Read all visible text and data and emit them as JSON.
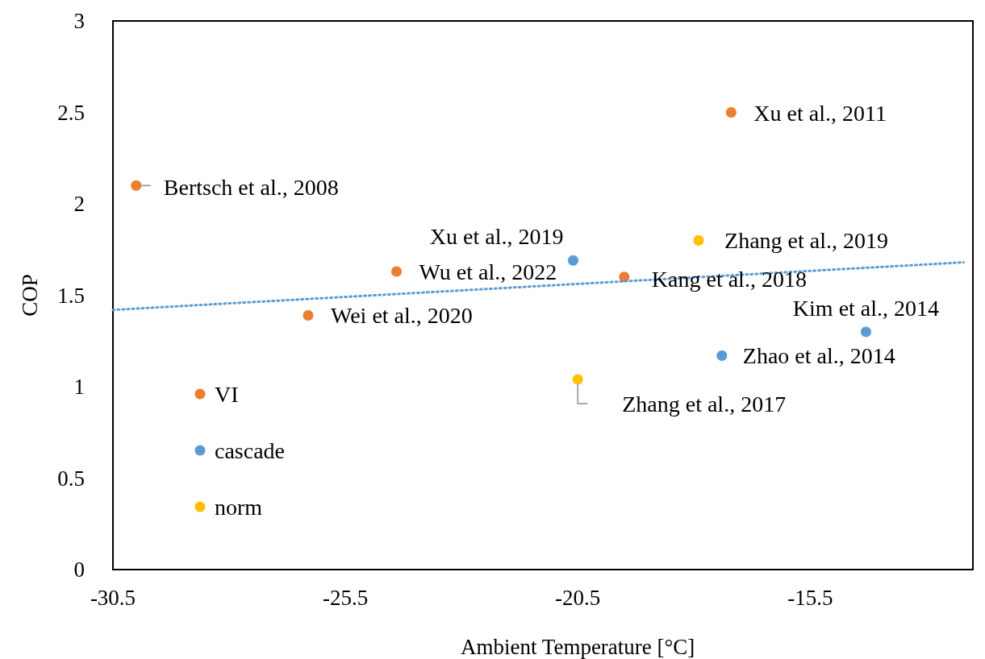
{
  "chart_data": {
    "type": "scatter",
    "xlabel": "Ambient Temperature [°C]",
    "ylabel": "COP",
    "xlim": [
      -30.5,
      -12
    ],
    "xticks": [
      -30.5,
      -25.5,
      -20.5,
      -15.5
    ],
    "ylim": [
      0,
      3
    ],
    "yticks": [
      0,
      0.5,
      1,
      1.5,
      2,
      2.5,
      3
    ],
    "grid": false,
    "legend": "bottom left",
    "marker": "circle",
    "series": [
      {
        "name": "VI",
        "color": "#ed7d31",
        "x": [
          -30.0,
          -17.2,
          -24.4,
          -26.3,
          -19.5
        ],
        "values": [
          2.1,
          2.5,
          1.63,
          1.39,
          1.6
        ]
      },
      {
        "name": "cascade",
        "color": "#5b9bd5",
        "x": [
          -20.6,
          -17.4,
          -14.3
        ],
        "values": [
          1.69,
          1.17,
          1.3
        ]
      },
      {
        "name": "norm",
        "color": "#ffc000",
        "x": [
          -17.9,
          -20.5
        ],
        "values": [
          1.8,
          1.04
        ]
      },
      {
        "type": "line",
        "color": "#5b9bd5",
        "line_style": "dotted",
        "marker": "none",
        "x": [
          -30.5,
          -12.2
        ],
        "values": [
          1.42,
          1.68
        ]
      }
    ],
    "annotations": [
      {
        "text": "Bertsch et al., 2008",
        "x": -30.0,
        "y": 2.1
      },
      {
        "text": "Xu et al., 2011",
        "x": -17.2,
        "y": 2.5
      },
      {
        "text": "Wu et al., 2022",
        "x": -24.4,
        "y": 1.63
      },
      {
        "text": "Wei et al., 2020",
        "x": -26.3,
        "y": 1.39
      },
      {
        "text": "Kang et al., 2018",
        "x": -19.5,
        "y": 1.6
      },
      {
        "text": "Xu et al., 2019",
        "x": -20.6,
        "y": 1.69
      },
      {
        "text": "Zhao et al., 2014",
        "x": -17.4,
        "y": 1.17
      },
      {
        "text": "Kim et al., 2014",
        "x": -14.3,
        "y": 1.3
      },
      {
        "text": "Zhang et al., 2019",
        "x": -17.9,
        "y": 1.8
      },
      {
        "text": "Zhang et al., 2017",
        "x": -20.5,
        "y": 1.04
      }
    ]
  }
}
